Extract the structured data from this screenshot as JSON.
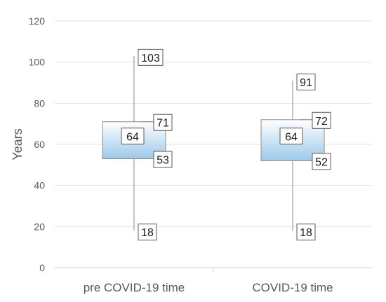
{
  "chart_data": {
    "type": "box",
    "ylabel": "Years",
    "ylim": [
      0,
      120
    ],
    "yticks": [
      0,
      20,
      40,
      60,
      80,
      100,
      120
    ],
    "categories": [
      "pre COVID-19 time",
      "COVID-19 time"
    ],
    "boxes": [
      {
        "category": "pre COVID-19 time",
        "min": 18,
        "q1": 53,
        "median": 64,
        "q3": 71,
        "max": 103
      },
      {
        "category": "COVID-19 time",
        "min": 18,
        "q1": 52,
        "median": 64,
        "q3": 72,
        "max": 91
      }
    ],
    "grid": true,
    "box_color": "#9dc9ea"
  }
}
